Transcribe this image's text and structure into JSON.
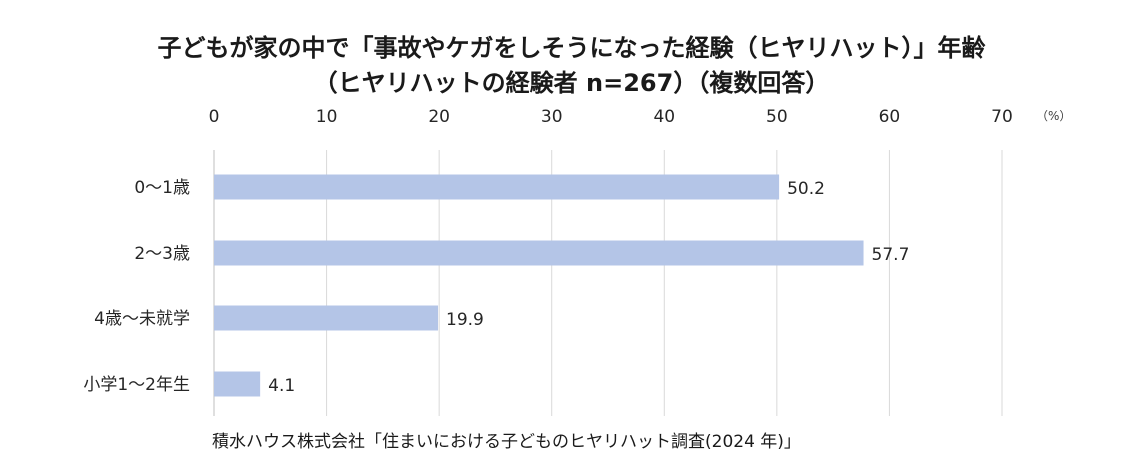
{
  "header": {
    "title_line1": "子どもが家の中で「事故やケガをしそうになった経験（ヒヤリハット）」年齢",
    "title_line2": "（ヒヤリハットの経験者 n=267）（複数回答）"
  },
  "chart_data": {
    "type": "bar",
    "orientation": "horizontal",
    "categories": [
      "0～1歳",
      "2～3歳",
      "4歳～未就学",
      "小学1～2年生"
    ],
    "values": [
      50.2,
      57.7,
      19.9,
      4.1
    ],
    "value_labels": [
      "50.2",
      "57.7",
      "19.9",
      "4.1"
    ],
    "xlim": [
      0,
      70
    ],
    "ticks": [
      0,
      10,
      20,
      30,
      40,
      50,
      60,
      70
    ],
    "tick_labels": [
      "0",
      "10",
      "20",
      "30",
      "40",
      "50",
      "60",
      "70"
    ],
    "unit": "（%）",
    "axis_position": "top",
    "grid": true,
    "bar_color": "#b4c5e7",
    "grid_color": "#d9d9d9"
  },
  "footer": {
    "source": "積水ハウス株式会社「住まいにおける子どものヒヤリハット調査(2024 年)」"
  }
}
